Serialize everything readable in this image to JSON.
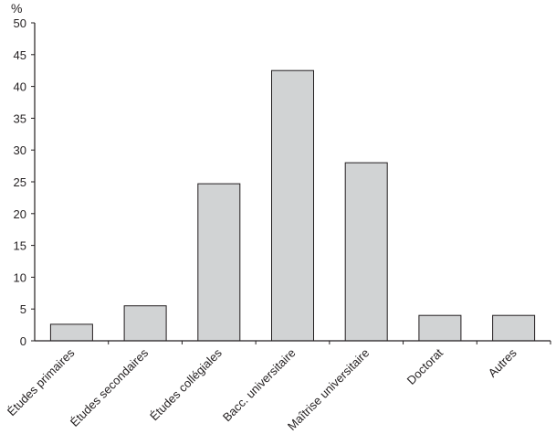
{
  "chart_data": {
    "type": "bar",
    "unit": "%",
    "categories": [
      "Études primaires",
      "Études secondaires",
      "Études collégiales",
      "Bacc. universitaire",
      "Maîtrise universitaire",
      "Doctorat",
      "Autres"
    ],
    "values": [
      2.6,
      5.5,
      24.7,
      42.5,
      28.0,
      4.0,
      4.0
    ],
    "ylim": [
      0,
      50
    ],
    "yticks": [
      0,
      5,
      10,
      15,
      20,
      25,
      30,
      35,
      40,
      45,
      50
    ],
    "bar_color": "#d1d3d4",
    "bar_stroke": "#231f20",
    "grid": false,
    "legend": "none"
  }
}
